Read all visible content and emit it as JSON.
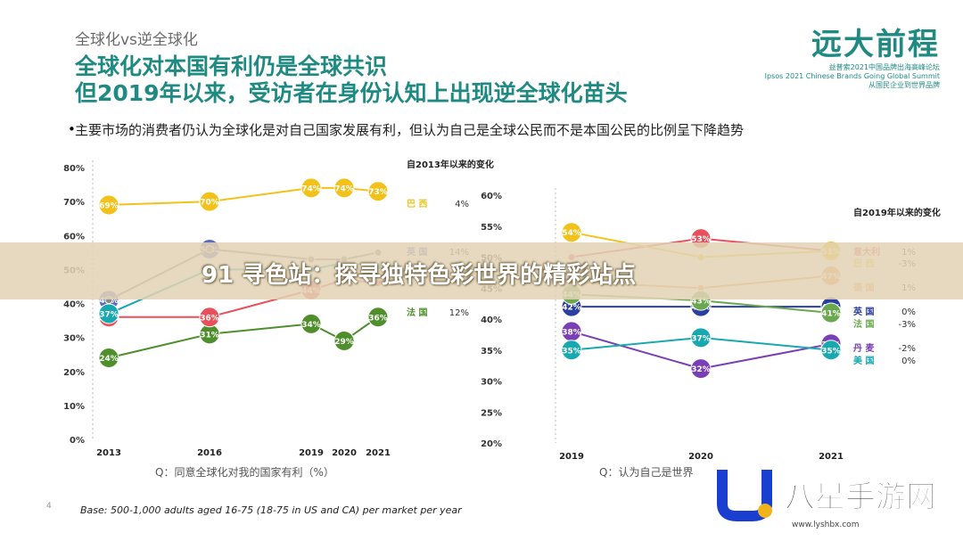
{
  "header": {
    "kicker": "全球化vs逆全球化",
    "title_line1": "全球化对本国有利仍是全球共识",
    "title_line2": "但2019年以来，受访者在身份认知上出现逆全球化苗头",
    "bullet": "主要市场的消费者仍认为全球化是对自己国家发展有利，但认为自己是全球公民而不是本国公民的比例呈下降趋势"
  },
  "logo": {
    "main": "远大前程",
    "sub1": "益普索2021中国品牌出海高峰论坛",
    "sub2": "Ipsos 2021 Chinese Brands Going Global Summit",
    "sub3": "从国民企业到世界品牌"
  },
  "banner": {
    "text": "91 寻色站：探寻独特色彩世界的精彩站点"
  },
  "footer": {
    "base": "Base: 500-1,000 adults aged 16-75 (18-75 in US and CA) per market per year",
    "page": "4"
  },
  "watermark": {
    "text": "八星手游网",
    "url": "www.lyshbx.com"
  },
  "colors": {
    "teal": "#1f8a82",
    "brazil": "#f2c21b",
    "uk": "#5b6abf",
    "france": "#4e8f2c",
    "italy": "#e8505b",
    "usa": "#18a8b0",
    "denmark": "#7b3fb5",
    "grey": "#8a8a8a",
    "orange": "#f39a4a"
  },
  "chart_data": [
    {
      "type": "line",
      "x": [
        "2013",
        "2016",
        "2019",
        "2020",
        "2021"
      ],
      "ylim": [
        0,
        80
      ],
      "yticks": [
        "0%",
        "10%",
        "20%",
        "30%",
        "40%",
        "50%",
        "60%",
        "70%",
        "80%"
      ],
      "xlabel": "Q：同意全球化对我的国家有利（%）",
      "legend_title": "自2013年以来的变化",
      "series": [
        {
          "name": "巴 西",
          "change": "4%",
          "color": "#f2c21b",
          "values": [
            69,
            70,
            74,
            74,
            73
          ],
          "labels": [
            "69%",
            "70%",
            "74%",
            "74%",
            "73%"
          ]
        },
        {
          "name": "英 国",
          "change": "14%",
          "color": "#5b6abf",
          "values": [
            41,
            56,
            53,
            53,
            55
          ],
          "labels": [
            "41%",
            "56%",
            "",
            "",
            ""
          ]
        },
        {
          "name": "法 国",
          "change": "12%",
          "color": "#4e8f2c",
          "values": [
            24,
            31,
            34,
            29,
            36
          ],
          "labels": [
            "24%",
            "31%",
            "34%",
            "29%",
            "36%"
          ]
        },
        {
          "name": "",
          "change": "",
          "color": "#e8505b",
          "values": [
            36,
            36,
            44,
            47,
            46
          ],
          "labels": [
            "36%",
            "36%",
            "44%",
            "",
            ""
          ]
        },
        {
          "name": "",
          "change": "",
          "color": "#18a8b0",
          "values": [
            37,
            50,
            50,
            52,
            51
          ],
          "labels": [
            "37%",
            "",
            "",
            "",
            ""
          ]
        },
        {
          "name": "",
          "change": "",
          "color": "#8a8a8a",
          "values": [
            41,
            56,
            53,
            53,
            55
          ],
          "labels": [
            "",
            "",
            "",
            "",
            ""
          ]
        }
      ]
    },
    {
      "type": "line",
      "x": [
        "2019",
        "2020",
        "2021"
      ],
      "ylim": [
        20,
        60
      ],
      "yticks": [
        "20%",
        "25%",
        "30%",
        "35%",
        "40%",
        "45%",
        "50%",
        "55%",
        "60%"
      ],
      "xlabel": "Q：认为自己是世界",
      "legend_title": "自2019年以来的变化",
      "series": [
        {
          "name": "意大利",
          "change": "1%",
          "color": "#e8505b",
          "values": [
            50,
            53,
            51
          ],
          "labels": [
            "",
            "53%",
            ""
          ]
        },
        {
          "name": "巴 西",
          "change": "-3%",
          "color": "#f2c21b",
          "values": [
            54,
            50,
            51
          ],
          "labels": [
            "54%",
            "",
            "51%"
          ]
        },
        {
          "name": "德 国",
          "change": "1%",
          "color": "#f39a4a",
          "values": [
            46,
            45,
            47
          ],
          "labels": [
            "",
            "",
            "47%"
          ]
        },
        {
          "name": "英 国",
          "change": "0%",
          "color": "#2a3f9f",
          "values": [
            42,
            42,
            42
          ],
          "labels": [
            "42%",
            "42%",
            "42%"
          ]
        },
        {
          "name": "法 国",
          "change": "-3%",
          "color": "#6aa84f",
          "values": [
            44,
            43,
            41
          ],
          "labels": [
            "44%",
            "43%",
            "41%"
          ]
        },
        {
          "name": "丹 麦",
          "change": "-2%",
          "color": "#7b3fb5",
          "values": [
            38,
            32,
            36
          ],
          "labels": [
            "38%",
            "32%",
            "36%"
          ]
        },
        {
          "name": "美 国",
          "change": "0%",
          "color": "#18a8b0",
          "values": [
            35,
            37,
            35
          ],
          "labels": [
            "35%",
            "37%",
            "35%"
          ]
        }
      ]
    }
  ]
}
